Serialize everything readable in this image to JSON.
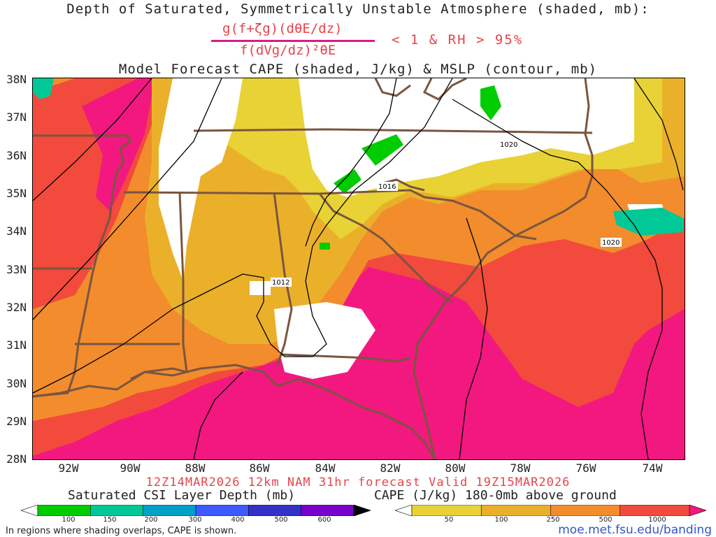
{
  "title": {
    "line1": "Depth of Saturated, Symmetrically Unstable Atmosphere (shaded, mb):",
    "numerator": "g(f+ζg)(dθE/dz)",
    "denominator": "f(dVg/dz)²θE",
    "condition": "< 1 & RH > 95%",
    "line3": "Model Forecast CAPE (shaded, J/kg) & MSLP (contour, mb)"
  },
  "map": {
    "lat_labels": [
      "38N",
      "37N",
      "36N",
      "35N",
      "34N",
      "33N",
      "32N",
      "31N",
      "30N",
      "29N",
      "28N"
    ],
    "lon_labels": [
      "92W",
      "90W",
      "88W",
      "86W",
      "84W",
      "82W",
      "80W",
      "78W",
      "76W",
      "74W"
    ],
    "isobar_labels": [
      "1020",
      "1016",
      "1012",
      "1020"
    ]
  },
  "valid_line": "12Z14MAR2026 12km NAM 31hr forecast Valid 19Z15MAR2026",
  "colorbar_csi": {
    "title": "Saturated CSI Layer Depth (mb)",
    "ticks": [
      "100",
      "150",
      "200",
      "300",
      "400",
      "500",
      "600"
    ],
    "colors": [
      "#ffffff",
      "#00cc00",
      "#00c896",
      "#00a0c8",
      "#3c5aff",
      "#3232c8",
      "#7800c8",
      "#000000"
    ]
  },
  "colorbar_cape": {
    "title": "CAPE (J/kg) 180-0mb above ground",
    "ticks": [
      "50",
      "100",
      "250",
      "500",
      "1000"
    ],
    "colors": [
      "#ffffff",
      "#e8d236",
      "#ebb02a",
      "#f28c2c",
      "#f24a3c",
      "#f21880"
    ]
  },
  "note": "In regions where shading overlaps, CAPE is shown.",
  "url": "moe.met.fsu.edu/banding"
}
